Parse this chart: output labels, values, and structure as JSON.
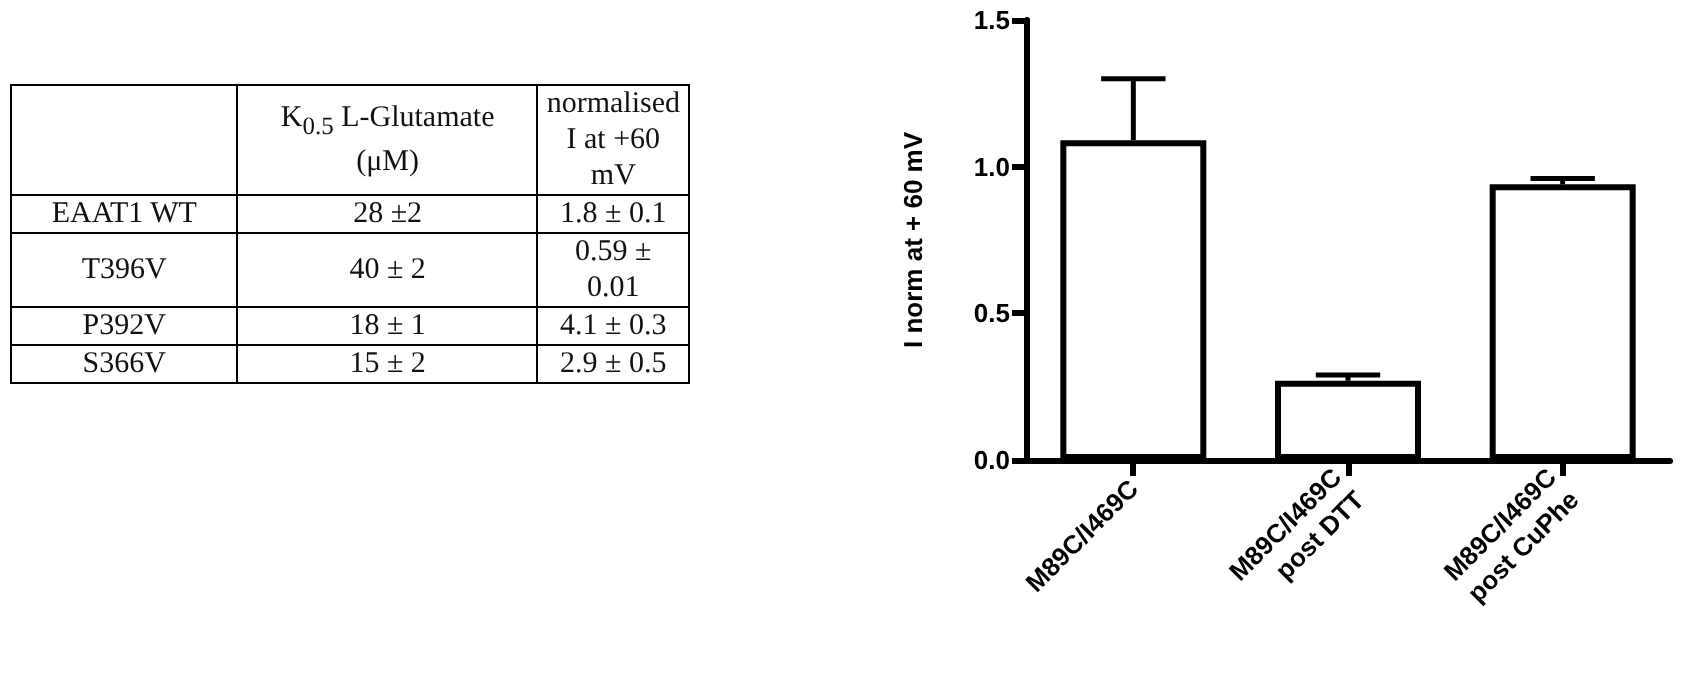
{
  "chart_data": [
    {
      "type": "other",
      "categories": [
        null,
        "K$_{0.5}$ L-Glutamate (μM)",
        "normalised I at +60 mV"
      ],
      "y_categories": [
        "EAAT1 WT",
        "T396V",
        "P392V",
        "S366V"
      ],
      "cell_labels": [
        [
          "28 ±2",
          "1.8 ± 0.1"
        ],
        [
          "40 ± 2",
          "0.59 ± 0.01"
        ],
        [
          "18 ± 1",
          "4.1 ± 0.3"
        ],
        [
          "15 ± 2",
          "2.9 ± 0.5"
        ]
      ]
    },
    {
      "type": "bar",
      "categories": [
        "M89C/I469C",
        "M89C/I469C\npost DTT",
        "M89C/I469C\npost CuPhe"
      ],
      "values": [
        1.09,
        0.27,
        0.94
      ],
      "color": "#ffffff",
      "errors": [
        [
          1.09,
          1.3
        ],
        [
          0.27,
          0.29
        ],
        [
          0.94,
          0.96
        ]
      ],
      "ylabel": "I norm at + 60 mV",
      "ylim": [
        0,
        1.5
      ],
      "yticks": [
        {
          "value": 0,
          "label": "0.0"
        },
        {
          "value": 0.5,
          "label": "0.5"
        },
        {
          "value": 1,
          "label": "1.0"
        },
        {
          "value": 1.5,
          "label": "1.5"
        }
      ],
      "grid": false
    }
  ]
}
